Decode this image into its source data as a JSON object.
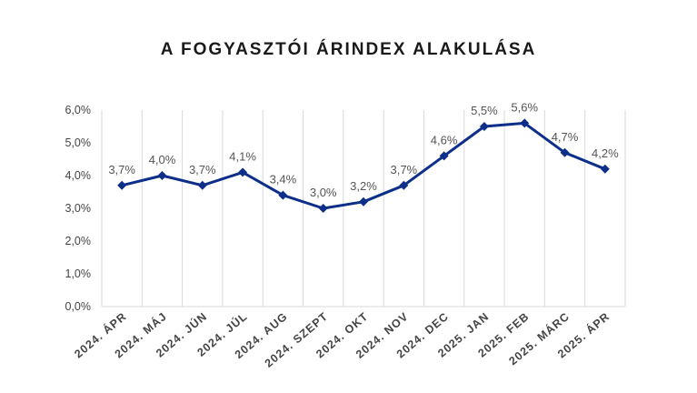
{
  "chart_data": {
    "type": "line",
    "title": "A FOGYASZTÓI ÁRINDEX ALAKULÁSA",
    "categories": [
      "2024. ÁPR",
      "2024. MÁJ",
      "2024. JÚN",
      "2024. JÚL",
      "2024. AUG",
      "2024. SZEPT",
      "2024. OKT",
      "2024. NOV",
      "2024. DEC",
      "2025. JAN",
      "2025. FEB",
      "2025. MÁRC",
      "2025. ÁPR"
    ],
    "values": [
      3.7,
      4.0,
      3.7,
      4.1,
      3.4,
      3.0,
      3.2,
      3.7,
      4.6,
      5.5,
      5.6,
      4.7,
      4.2
    ],
    "data_labels": [
      "3,7%",
      "4,0%",
      "3,7%",
      "4,1%",
      "3,4%",
      "3,0%",
      "3,2%",
      "3,7%",
      "4,6%",
      "5,5%",
      "5,6%",
      "4,7%",
      "4,2%"
    ],
    "ylim": [
      0,
      6
    ],
    "yticks": [
      0,
      1,
      2,
      3,
      4,
      5,
      6
    ],
    "ytick_labels": [
      "0,0%",
      "1,0%",
      "2,0%",
      "3,0%",
      "4,0%",
      "5,0%",
      "6,0%"
    ],
    "grid": "vertical",
    "line_color": "#0d2f8a",
    "grid_color": "#d9d9d9",
    "xlabel": "",
    "ylabel": ""
  }
}
